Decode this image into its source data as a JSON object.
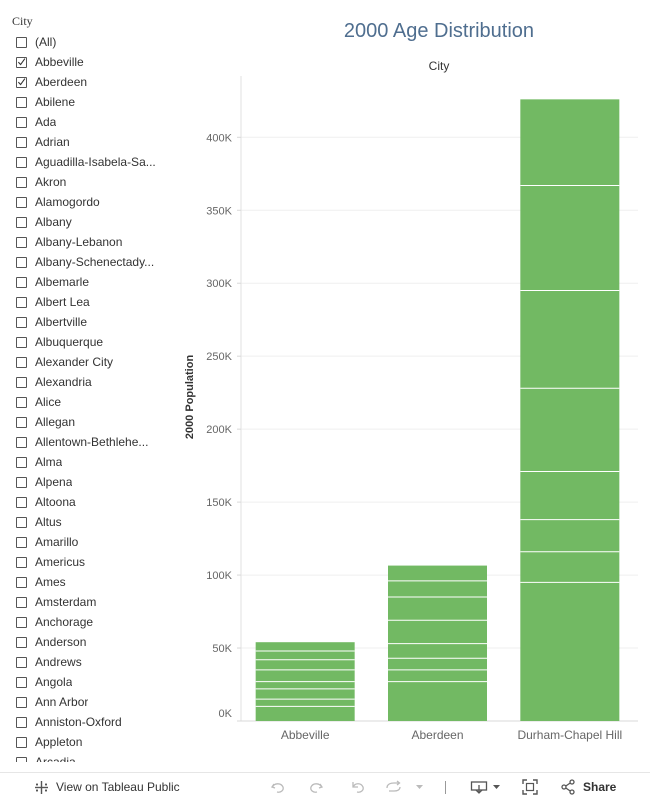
{
  "filter": {
    "title": "City",
    "items": [
      {
        "label": "(All)",
        "checked": false
      },
      {
        "label": "Abbeville",
        "checked": true
      },
      {
        "label": "Aberdeen",
        "checked": true
      },
      {
        "label": "Abilene",
        "checked": false
      },
      {
        "label": "Ada",
        "checked": false
      },
      {
        "label": "Adrian",
        "checked": false
      },
      {
        "label": "Aguadilla-Isabela-Sa...",
        "checked": false
      },
      {
        "label": "Akron",
        "checked": false
      },
      {
        "label": "Alamogordo",
        "checked": false
      },
      {
        "label": "Albany",
        "checked": false
      },
      {
        "label": "Albany-Lebanon",
        "checked": false
      },
      {
        "label": "Albany-Schenectady...",
        "checked": false
      },
      {
        "label": "Albemarle",
        "checked": false
      },
      {
        "label": "Albert Lea",
        "checked": false
      },
      {
        "label": "Albertville",
        "checked": false
      },
      {
        "label": "Albuquerque",
        "checked": false
      },
      {
        "label": "Alexander City",
        "checked": false
      },
      {
        "label": "Alexandria",
        "checked": false
      },
      {
        "label": "Alice",
        "checked": false
      },
      {
        "label": "Allegan",
        "checked": false
      },
      {
        "label": "Allentown-Bethlehe...",
        "checked": false
      },
      {
        "label": "Alma",
        "checked": false
      },
      {
        "label": "Alpena",
        "checked": false
      },
      {
        "label": "Altoona",
        "checked": false
      },
      {
        "label": "Altus",
        "checked": false
      },
      {
        "label": "Amarillo",
        "checked": false
      },
      {
        "label": "Americus",
        "checked": false
      },
      {
        "label": "Ames",
        "checked": false
      },
      {
        "label": "Amsterdam",
        "checked": false
      },
      {
        "label": "Anchorage",
        "checked": false
      },
      {
        "label": "Anderson",
        "checked": false
      },
      {
        "label": "Andrews",
        "checked": false
      },
      {
        "label": "Angola",
        "checked": false
      },
      {
        "label": "Ann Arbor",
        "checked": false
      },
      {
        "label": "Anniston-Oxford",
        "checked": false
      },
      {
        "label": "Appleton",
        "checked": false
      },
      {
        "label": "Arcadia",
        "checked": false
      }
    ]
  },
  "chart_data": {
    "type": "bar",
    "stacked": true,
    "title": "2000 Age Distribution",
    "column_header": "City",
    "ylabel": "2000 Population",
    "xlabel": "",
    "ylim": [
      0,
      442000
    ],
    "yticks": [
      0,
      50000,
      100000,
      150000,
      200000,
      250000,
      300000,
      350000,
      400000
    ],
    "ytick_labels": [
      "0K",
      "50K",
      "100K",
      "150K",
      "200K",
      "250K",
      "300K",
      "350K",
      "400K"
    ],
    "categories": [
      "Abbeville",
      "Aberdeen",
      "Durham-Chapel Hill"
    ],
    "totals": [
      54000,
      106500,
      426000
    ],
    "segment_boundaries": [
      [
        10000,
        15000,
        22000,
        27000,
        35000,
        42000,
        48000
      ],
      [
        27000,
        35000,
        43000,
        53000,
        69000,
        85000,
        96000
      ],
      [
        95000,
        116000,
        138000,
        171000,
        228000,
        295000,
        367000
      ]
    ],
    "bar_color": "#72b963",
    "segment_line_color": "#ffffff",
    "grid": true
  },
  "toolbar": {
    "view_label": "View on Tableau Public",
    "share_label": "Share"
  },
  "colors": {
    "title": "#4f6e8f",
    "bar": "#72b963"
  }
}
